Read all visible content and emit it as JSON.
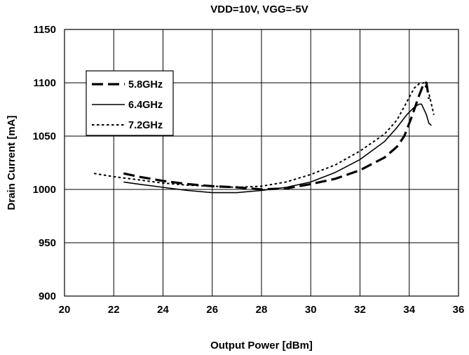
{
  "chart_data": {
    "type": "line",
    "title": "VDD=10V, VGG=-5V",
    "xlabel": "Output Power [dBm]",
    "ylabel": "Drain Current [mA]",
    "xlim": [
      20,
      36
    ],
    "ylim": [
      900,
      1150
    ],
    "xticks": [
      "20",
      "22",
      "24",
      "26",
      "28",
      "30",
      "32",
      "34",
      "36"
    ],
    "yticks": [
      "900",
      "950",
      "1000",
      "1050",
      "1100",
      "1150"
    ],
    "grid": true,
    "legend_position": "upper-left",
    "series": [
      {
        "name": "5.8GHz",
        "style": "long-dash",
        "x": [
          22.4,
          23,
          24,
          25,
          26,
          27,
          28,
          29,
          30,
          31,
          32,
          33,
          33.5,
          33.8,
          34.1,
          34.4,
          34.6,
          34.7,
          34.8
        ],
        "y": [
          1015,
          1012,
          1008,
          1005,
          1003,
          1002,
          1000,
          1001,
          1005,
          1010,
          1018,
          1030,
          1040,
          1050,
          1068,
          1088,
          1100,
          1100,
          1085
        ]
      },
      {
        "name": "6.4GHz",
        "style": "solid",
        "x": [
          22.4,
          23,
          24,
          25,
          26,
          27,
          28,
          29,
          30,
          31,
          32,
          33,
          33.5,
          33.9,
          34.2,
          34.4,
          34.5,
          34.7,
          34.8,
          34.9
        ],
        "y": [
          1007,
          1005,
          1002,
          999,
          997,
          997,
          999,
          1002,
          1007,
          1016,
          1028,
          1045,
          1058,
          1070,
          1077,
          1080,
          1080,
          1070,
          1062,
          1060
        ]
      },
      {
        "name": "7.2GHz",
        "style": "dotted",
        "x": [
          21.2,
          22,
          23,
          24,
          25,
          26,
          27,
          28,
          29,
          30,
          31,
          32,
          33,
          33.5,
          33.9,
          34.2,
          34.4,
          34.6,
          34.8,
          35.0
        ],
        "y": [
          1015,
          1012,
          1009,
          1006,
          1004,
          1003,
          1002,
          1003,
          1007,
          1014,
          1023,
          1036,
          1052,
          1065,
          1082,
          1095,
          1099,
          1100,
          1090,
          1070
        ]
      }
    ]
  }
}
